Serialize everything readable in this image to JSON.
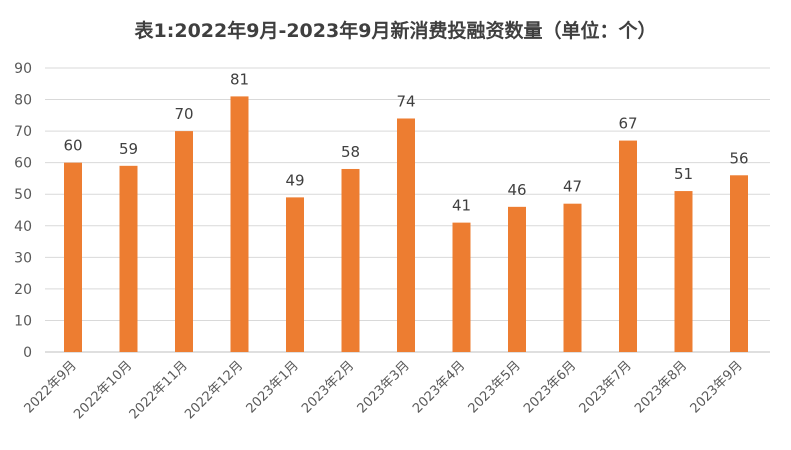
{
  "chart_data": {
    "type": "bar",
    "title": "表1:2022年9月-2023年9月新消费投融资数量（单位：个）",
    "categories": [
      "2022年9月",
      "2022年10月",
      "2022年11月",
      "2022年12月",
      "2023年1月",
      "2023年2月",
      "2023年3月",
      "2023年4月",
      "2023年5月",
      "2023年6月",
      "2023年7月",
      "2023年8月",
      "2023年9月"
    ],
    "values": [
      60,
      59,
      70,
      81,
      49,
      58,
      74,
      41,
      46,
      47,
      67,
      51,
      56
    ],
    "ylim": [
      0,
      90
    ],
    "yticks": [
      0,
      10,
      20,
      30,
      40,
      50,
      60,
      70,
      80,
      90
    ],
    "bar_color": "#ED7D31",
    "grid": true,
    "data_labels": true
  }
}
